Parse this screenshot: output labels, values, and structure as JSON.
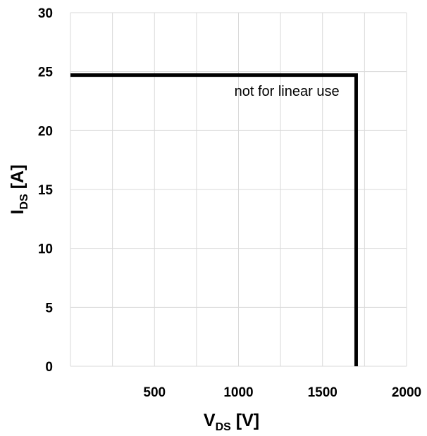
{
  "chart_data": {
    "type": "line",
    "title": "",
    "xlabel": {
      "main": "V",
      "sub": "DS",
      "unit": " [V]"
    },
    "ylabel": {
      "main": "I",
      "sub": "DS",
      "unit": " [A]"
    },
    "xlim": [
      0,
      2000
    ],
    "ylim": [
      0,
      30
    ],
    "x_ticks": [
      500,
      1000,
      1500,
      2000
    ],
    "y_ticks": [
      0,
      5,
      10,
      15,
      20,
      25,
      30
    ],
    "x_gridlines": [
      250,
      500,
      750,
      1000,
      1250,
      1500,
      1750,
      2000
    ],
    "y_gridlines": [
      0,
      5,
      10,
      15,
      20,
      25,
      30
    ],
    "grid": true,
    "legend": "none",
    "series": [
      {
        "x": [
          0,
          1700,
          1700
        ],
        "y": [
          24.7,
          24.7,
          0
        ],
        "color": "#000000"
      }
    ],
    "annotations": [
      {
        "text": "not for linear use",
        "x": 1600,
        "y": 22
      }
    ]
  }
}
